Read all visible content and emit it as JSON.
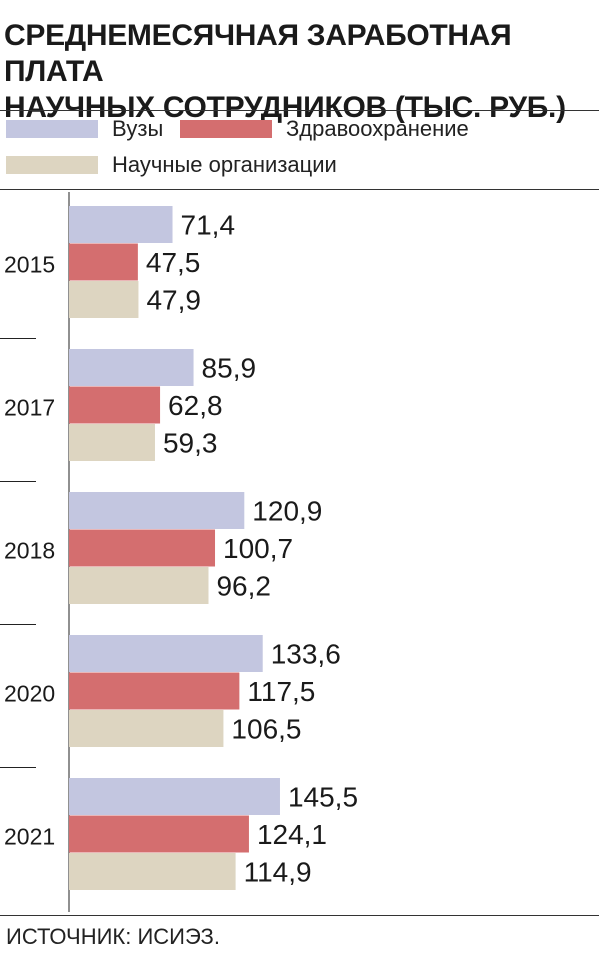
{
  "title_line1": "СРЕДНЕМЕСЯЧНАЯ ЗАРАБОТНАЯ ПЛАТА",
  "title_line2": "НАУЧНЫХ СОТРУДНИКОВ (ТЫС. РУБ.)",
  "source": "ИСТОЧНИК: ИСИЭЗ.",
  "chart_data": {
    "type": "bar",
    "orientation": "horizontal",
    "categories": [
      "2015",
      "2017",
      "2018",
      "2020",
      "2021"
    ],
    "series": [
      {
        "name": "Вузы",
        "color": "#c3c6e0",
        "values": [
          71.4,
          85.9,
          120.9,
          133.6,
          145.5
        ],
        "labels": [
          "71,4",
          "85,9",
          "120,9",
          "133,6",
          "145,5"
        ]
      },
      {
        "name": "Здравоохранение",
        "color": "#d46e6f",
        "values": [
          47.5,
          62.8,
          100.7,
          117.5,
          124.1
        ],
        "labels": [
          "47,5",
          "62,8",
          "100,7",
          "117,5",
          "124,1"
        ]
      },
      {
        "name": "Научные организации",
        "color": "#ddd5c1",
        "values": [
          47.9,
          59.3,
          96.2,
          106.5,
          114.9
        ],
        "labels": [
          "47,9",
          "59,3",
          "96,2",
          "106,5",
          "114,9"
        ]
      }
    ],
    "legend": "top",
    "grid": false
  }
}
